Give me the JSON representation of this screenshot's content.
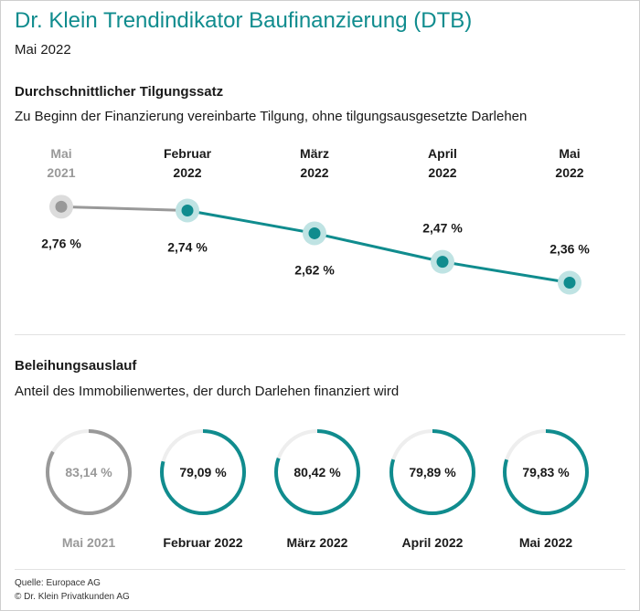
{
  "header": {
    "title": "Dr. Klein Trendindikator Baufinanzierung (DTB)",
    "subtitle": "Mai 2022"
  },
  "colors": {
    "accent": "#108c8e",
    "accent_light": "#bfe3e3",
    "past": "#999999",
    "past_light": "#dcdcdc",
    "ring_track": "#eeeeee"
  },
  "chart_data": [
    {
      "type": "line",
      "title": "Durchschnittlicher Tilgungssatz",
      "subtitle": "Zu Beginn der Finanzierung vereinbarte Tilgung, ohne tilgungsausgesetzte Darlehen",
      "categories": [
        {
          "line1": "Mai",
          "line2": "2021"
        },
        {
          "line1": "Februar",
          "line2": "2022"
        },
        {
          "line1": "März",
          "line2": "2022"
        },
        {
          "line1": "April",
          "line2": "2022"
        },
        {
          "line1": "Mai",
          "line2": "2022"
        }
      ],
      "values": [
        2.76,
        2.74,
        2.62,
        2.47,
        2.36
      ],
      "labels": [
        "2,76 %",
        "2,74 %",
        "2,62 %",
        "2,47 %",
        "2,36 %"
      ],
      "label_placement": [
        "below",
        "below",
        "below",
        "above",
        "above"
      ],
      "ylim": [
        2.3,
        2.8
      ]
    },
    {
      "type": "pie",
      "title": "Beleihungsauslauf",
      "subtitle": "Anteil des Immobilienwertes, der durch Darlehen finanziert wird",
      "categories": [
        "Mai 2021",
        "Februar 2022",
        "März 2022",
        "April 2022",
        "Mai 2022"
      ],
      "values": [
        83.14,
        79.09,
        80.42,
        79.89,
        79.83
      ],
      "labels": [
        "83,14 %",
        "79,09 %",
        "80,42 %",
        "79,89 %",
        "79,83 %"
      ]
    }
  ],
  "footer": {
    "source": "Quelle: Europace AG",
    "copyright": "© Dr. Klein Privatkunden AG"
  }
}
